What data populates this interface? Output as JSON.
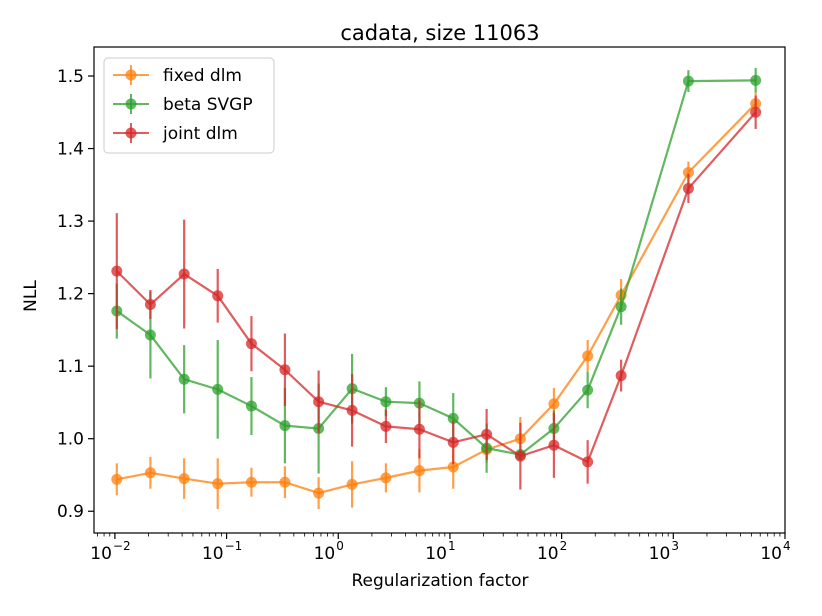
{
  "chart_data": {
    "type": "line",
    "title": "cadata, size 11063",
    "xlabel": "Regularization factor",
    "ylabel": "NLL",
    "xscale": "log",
    "xlim": [
      0.0065,
      10000
    ],
    "ylim": [
      0.87,
      1.54
    ],
    "legend_position": "top-left",
    "x_ticks": [
      {
        "base": "10",
        "exp": "−2"
      },
      {
        "base": "10",
        "exp": "−1"
      },
      {
        "base": "10",
        "exp": "0"
      },
      {
        "base": "10",
        "exp": "1"
      },
      {
        "base": "10",
        "exp": "2"
      },
      {
        "base": "10",
        "exp": "3"
      },
      {
        "base": "10",
        "exp": "4"
      }
    ],
    "y_ticks": [
      "0.9",
      "1.0",
      "1.1",
      "1.2",
      "1.3",
      "1.4",
      "1.5"
    ],
    "series": [
      {
        "name": "fixed dlm",
        "color": "#ff7f0e",
        "x": [
          0.0104,
          0.0208,
          0.0417,
          0.0833,
          0.167,
          0.333,
          0.667,
          1.33,
          2.67,
          5.33,
          10.7,
          21.3,
          42.7,
          85.3,
          171,
          341,
          1365,
          5461
        ],
        "y": [
          0.944,
          0.953,
          0.945,
          0.938,
          0.94,
          0.94,
          0.925,
          0.937,
          0.946,
          0.956,
          0.961,
          0.985,
          1.0,
          1.048,
          1.114,
          1.198,
          1.367,
          1.462
        ],
        "err": [
          0.022,
          0.022,
          0.028,
          0.035,
          0.02,
          0.022,
          0.022,
          0.032,
          0.02,
          0.03,
          0.03,
          0.018,
          0.03,
          0.022,
          0.022,
          0.022,
          0.015,
          0.015
        ]
      },
      {
        "name": "beta SVGP",
        "color": "#2ca02c",
        "x": [
          0.0104,
          0.0208,
          0.0417,
          0.0833,
          0.167,
          0.333,
          0.667,
          1.33,
          2.67,
          5.33,
          10.7,
          21.3,
          42.7,
          85.3,
          171,
          341,
          1365,
          5461
        ],
        "y": [
          1.176,
          1.143,
          1.082,
          1.068,
          1.045,
          1.018,
          1.014,
          1.069,
          1.051,
          1.049,
          1.028,
          0.987,
          0.978,
          1.014,
          1.067,
          1.182,
          1.493,
          1.494
        ],
        "err": [
          0.038,
          0.06,
          0.047,
          0.068,
          0.04,
          0.052,
          0.062,
          0.048,
          0.02,
          0.03,
          0.035,
          0.034,
          0.006,
          0.025,
          0.025,
          0.025,
          0.015,
          0.017
        ]
      },
      {
        "name": "joint dlm",
        "color": "#d62728",
        "x": [
          0.0104,
          0.0208,
          0.0417,
          0.0833,
          0.167,
          0.333,
          0.667,
          1.33,
          2.67,
          5.33,
          10.7,
          21.3,
          42.7,
          85.3,
          171,
          341,
          1365,
          5461
        ],
        "y": [
          1.231,
          1.185,
          1.227,
          1.197,
          1.131,
          1.095,
          1.051,
          1.039,
          1.017,
          1.013,
          0.995,
          1.006,
          0.976,
          0.991,
          0.968,
          1.087,
          1.345,
          1.45
        ],
        "err": [
          0.08,
          0.02,
          0.075,
          0.037,
          0.038,
          0.05,
          0.043,
          0.05,
          0.023,
          0.04,
          0.03,
          0.035,
          0.046,
          0.045,
          0.03,
          0.022,
          0.02,
          0.023
        ]
      }
    ]
  }
}
